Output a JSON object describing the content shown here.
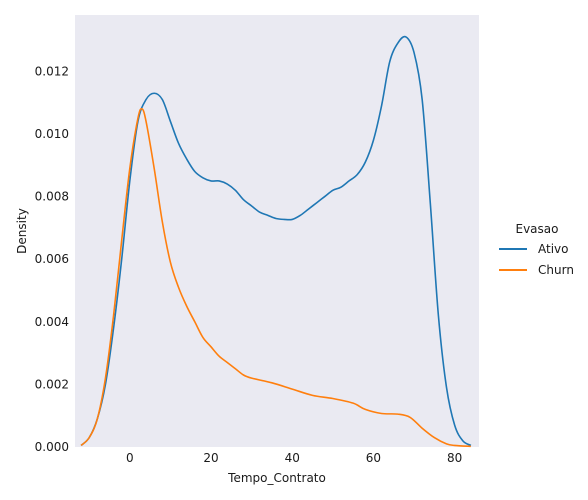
{
  "chart_data": {
    "type": "line",
    "xlabel": "Tempo_Contrato",
    "ylabel": "Density",
    "xlim": [
      -13.5,
      86
    ],
    "ylim": [
      0,
      0.0138
    ],
    "x_ticks": [
      0,
      20,
      40,
      60,
      80
    ],
    "x_tick_labels": [
      "0",
      "20",
      "40",
      "60",
      "80"
    ],
    "y_ticks": [
      0,
      0.002,
      0.004,
      0.006,
      0.008,
      0.01,
      0.012
    ],
    "y_tick_labels": [
      "0.000",
      "0.002",
      "0.004",
      "0.006",
      "0.008",
      "0.010",
      "0.012"
    ],
    "grid": false,
    "legend": {
      "title": "Evasao",
      "placement": "right-outside",
      "entries": [
        "Ativo",
        "Churn"
      ]
    },
    "series": [
      {
        "name": "Ativo",
        "color": "#1f77b4",
        "points": [
          [
            -12,
            5e-05
          ],
          [
            -10,
            0.0003
          ],
          [
            -8,
            0.0009
          ],
          [
            -6,
            0.002
          ],
          [
            -4,
            0.0038
          ],
          [
            -2,
            0.006
          ],
          [
            0,
            0.0085
          ],
          [
            2,
            0.0104
          ],
          [
            4,
            0.0111
          ],
          [
            6,
            0.0113
          ],
          [
            8,
            0.0111
          ],
          [
            10,
            0.0104
          ],
          [
            12,
            0.0097
          ],
          [
            14,
            0.0092
          ],
          [
            16,
            0.0088
          ],
          [
            18,
            0.0086
          ],
          [
            20,
            0.0085
          ],
          [
            22,
            0.0085
          ],
          [
            24,
            0.0084
          ],
          [
            26,
            0.0082
          ],
          [
            28,
            0.0079
          ],
          [
            30,
            0.0077
          ],
          [
            32,
            0.0075
          ],
          [
            34,
            0.0074
          ],
          [
            36,
            0.0073
          ],
          [
            38,
            0.00727
          ],
          [
            40,
            0.00727
          ],
          [
            42,
            0.0074
          ],
          [
            44,
            0.0076
          ],
          [
            46,
            0.0078
          ],
          [
            48,
            0.008
          ],
          [
            50,
            0.0082
          ],
          [
            52,
            0.0083
          ],
          [
            54,
            0.0085
          ],
          [
            56,
            0.0087
          ],
          [
            58,
            0.0091
          ],
          [
            60,
            0.0098
          ],
          [
            62,
            0.0109
          ],
          [
            64,
            0.0123
          ],
          [
            66,
            0.0129
          ],
          [
            68,
            0.0131
          ],
          [
            70,
            0.0126
          ],
          [
            72,
            0.0111
          ],
          [
            74,
            0.0078
          ],
          [
            76,
            0.0042
          ],
          [
            78,
            0.0019
          ],
          [
            80,
            0.0007
          ],
          [
            82,
            0.0002
          ],
          [
            84,
            5e-05
          ]
        ]
      },
      {
        "name": "Churn",
        "color": "#ff7f0e",
        "points": [
          [
            -12,
            5e-05
          ],
          [
            -10,
            0.0003
          ],
          [
            -8,
            0.0009
          ],
          [
            -6,
            0.0022
          ],
          [
            -4,
            0.0042
          ],
          [
            -2,
            0.0066
          ],
          [
            0,
            0.0089
          ],
          [
            2,
            0.0105
          ],
          [
            3,
            0.0108
          ],
          [
            4,
            0.0104
          ],
          [
            6,
            0.0089
          ],
          [
            8,
            0.0072
          ],
          [
            10,
            0.0059
          ],
          [
            12,
            0.0051
          ],
          [
            14,
            0.0045
          ],
          [
            16,
            0.004
          ],
          [
            18,
            0.0035
          ],
          [
            20,
            0.0032
          ],
          [
            22,
            0.0029
          ],
          [
            24,
            0.0027
          ],
          [
            26,
            0.0025
          ],
          [
            28,
            0.0023
          ],
          [
            30,
            0.0022
          ],
          [
            35,
            0.00205
          ],
          [
            40,
            0.00185
          ],
          [
            45,
            0.00165
          ],
          [
            50,
            0.00155
          ],
          [
            55,
            0.0014
          ],
          [
            58,
            0.0012
          ],
          [
            62,
            0.00107
          ],
          [
            66,
            0.00105
          ],
          [
            69,
            0.00095
          ],
          [
            72,
            0.0006
          ],
          [
            75,
            0.0003
          ],
          [
            78,
            0.0001
          ],
          [
            80,
            5e-05
          ],
          [
            84,
            2e-05
          ]
        ]
      }
    ]
  }
}
